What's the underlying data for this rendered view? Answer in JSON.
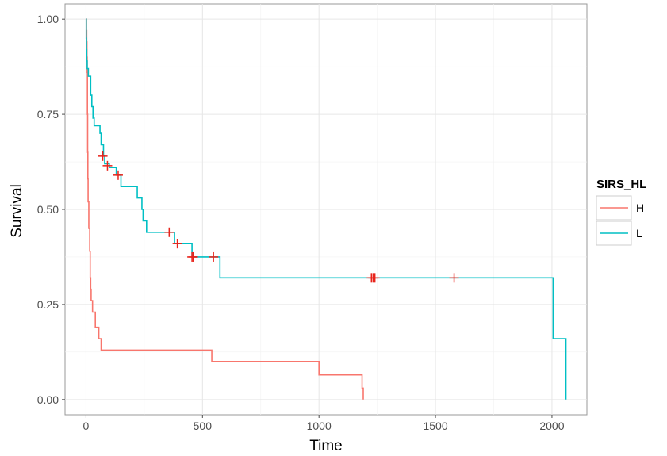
{
  "chart_data": {
    "type": "line",
    "subtype": "kaplan-meier-step",
    "xlabel": "Time",
    "ylabel": "Survival",
    "xlim": [
      -90,
      2150
    ],
    "ylim": [
      -0.04,
      1.04
    ],
    "x_ticks": [
      0,
      500,
      1000,
      1500,
      2000
    ],
    "x_tick_labels": [
      "0",
      "500",
      "1000",
      "1500",
      "2000"
    ],
    "y_ticks": [
      0,
      0.25,
      0.5,
      0.75,
      1.0
    ],
    "y_tick_labels": [
      "0.00",
      "0.25",
      "0.50",
      "0.75",
      "1.00"
    ],
    "grid": true,
    "legend": {
      "title": "SIRS_HL",
      "placement": "right",
      "entries": [
        "H",
        "L"
      ]
    },
    "series": [
      {
        "name": "H",
        "color": "#F8766D",
        "points": [
          [
            0,
            1.0
          ],
          [
            2,
            0.97
          ],
          [
            3,
            0.94
          ],
          [
            4,
            0.9
          ],
          [
            5,
            0.86
          ],
          [
            6,
            0.75
          ],
          [
            7,
            0.65
          ],
          [
            8,
            0.58
          ],
          [
            9,
            0.52
          ],
          [
            12,
            0.45
          ],
          [
            16,
            0.39
          ],
          [
            18,
            0.32
          ],
          [
            20,
            0.29
          ],
          [
            22,
            0.26
          ],
          [
            28,
            0.23
          ],
          [
            40,
            0.19
          ],
          [
            55,
            0.16
          ],
          [
            65,
            0.13
          ],
          [
            540,
            0.1
          ],
          [
            1000,
            0.065
          ],
          [
            1185,
            0.03
          ],
          [
            1190,
            0.0
          ]
        ],
        "censored": []
      },
      {
        "name": "L",
        "color": "#00BFC4",
        "points": [
          [
            0,
            1.0
          ],
          [
            1,
            0.95
          ],
          [
            2,
            0.92
          ],
          [
            3,
            0.89
          ],
          [
            5,
            0.87
          ],
          [
            10,
            0.85
          ],
          [
            20,
            0.8
          ],
          [
            25,
            0.77
          ],
          [
            30,
            0.74
          ],
          [
            35,
            0.72
          ],
          [
            60,
            0.7
          ],
          [
            65,
            0.67
          ],
          [
            75,
            0.64
          ],
          [
            80,
            0.62
          ],
          [
            100,
            0.61
          ],
          [
            130,
            0.59
          ],
          [
            150,
            0.56
          ],
          [
            220,
            0.53
          ],
          [
            240,
            0.5
          ],
          [
            245,
            0.47
          ],
          [
            260,
            0.44
          ],
          [
            380,
            0.41
          ],
          [
            455,
            0.375
          ],
          [
            575,
            0.32
          ],
          [
            2005,
            0.16
          ],
          [
            2060,
            0.0
          ]
        ],
        "censored": [
          [
            72,
            0.64
          ],
          [
            92,
            0.615
          ],
          [
            138,
            0.59
          ],
          [
            357,
            0.44
          ],
          [
            392,
            0.41
          ],
          [
            455,
            0.375
          ],
          [
            460,
            0.375
          ],
          [
            547,
            0.375
          ],
          [
            1225,
            0.32
          ],
          [
            1232,
            0.32
          ],
          [
            1240,
            0.32
          ],
          [
            1580,
            0.32
          ]
        ]
      }
    ],
    "censor_mark_color": "#E8231B"
  }
}
